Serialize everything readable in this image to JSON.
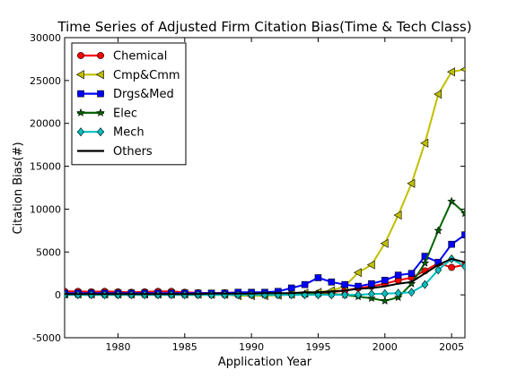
{
  "chart_data": {
    "type": "line",
    "title": "Time Series of Adjusted Firm Citation Bias(Time & Tech Class)",
    "xlabel": "Application Year",
    "ylabel": "Citation Bias(#)",
    "xlim": [
      1976,
      2006
    ],
    "ylim": [
      -5000,
      30000
    ],
    "xticks": [
      1980,
      1985,
      1990,
      1995,
      2000,
      2005
    ],
    "yticks": [
      -5000,
      0,
      5000,
      10000,
      15000,
      20000,
      25000,
      30000
    ],
    "grid": false,
    "legend": "top-left",
    "x": [
      1976,
      1977,
      1978,
      1979,
      1980,
      1981,
      1982,
      1983,
      1984,
      1985,
      1986,
      1987,
      1988,
      1989,
      1990,
      1991,
      1992,
      1993,
      1994,
      1995,
      1996,
      1997,
      1998,
      1999,
      2000,
      2001,
      2002,
      2003,
      2004,
      2005,
      2006
    ],
    "series": [
      {
        "name": "Chemical",
        "color": "#ff0000",
        "marker": "circle",
        "values": [
          400,
          400,
          350,
          400,
          350,
          300,
          350,
          400,
          400,
          300,
          250,
          200,
          250,
          250,
          200,
          200,
          150,
          100,
          50,
          200,
          300,
          500,
          800,
          1000,
          1300,
          1700,
          2000,
          2800,
          3700,
          3200,
          3500
        ]
      },
      {
        "name": "Cmp&Cmm",
        "color": "#bfbf00",
        "marker": "triangle-left",
        "values": [
          100,
          100,
          100,
          100,
          100,
          100,
          100,
          100,
          100,
          100,
          50,
          50,
          50,
          -100,
          -100,
          -100,
          -50,
          100,
          200,
          300,
          500,
          1000,
          2600,
          3500,
          6000,
          9300,
          13000,
          17700,
          23400,
          26000,
          26300
        ]
      },
      {
        "name": "Drgs&Med",
        "color": "#0000ff",
        "marker": "square",
        "values": [
          200,
          200,
          200,
          200,
          200,
          200,
          200,
          200,
          200,
          200,
          200,
          200,
          200,
          300,
          300,
          300,
          400,
          800,
          1200,
          2000,
          1500,
          1200,
          1000,
          1300,
          1700,
          2300,
          2500,
          4500,
          3800,
          5900,
          7000
        ]
      },
      {
        "name": "Elec",
        "color": "#006400",
        "marker": "star",
        "values": [
          0,
          0,
          0,
          0,
          0,
          0,
          0,
          0,
          0,
          0,
          0,
          0,
          0,
          0,
          0,
          0,
          0,
          0,
          100,
          100,
          100,
          0,
          -200,
          -400,
          -700,
          -300,
          1300,
          3700,
          7500,
          10900,
          9500
        ]
      },
      {
        "name": "Mech",
        "color": "#00bfbf",
        "marker": "diamond",
        "values": [
          0,
          0,
          0,
          0,
          0,
          0,
          0,
          0,
          0,
          0,
          0,
          0,
          0,
          0,
          0,
          0,
          0,
          0,
          0,
          0,
          0,
          0,
          0,
          100,
          150,
          200,
          300,
          1200,
          2900,
          4200,
          3300
        ]
      },
      {
        "name": "Others",
        "color": "#000000",
        "marker": "none",
        "values": [
          100,
          100,
          100,
          100,
          100,
          100,
          100,
          100,
          100,
          100,
          100,
          150,
          150,
          150,
          150,
          200,
          200,
          200,
          300,
          300,
          400,
          500,
          700,
          800,
          1000,
          1300,
          1500,
          2500,
          3500,
          4200,
          3800
        ]
      }
    ]
  }
}
